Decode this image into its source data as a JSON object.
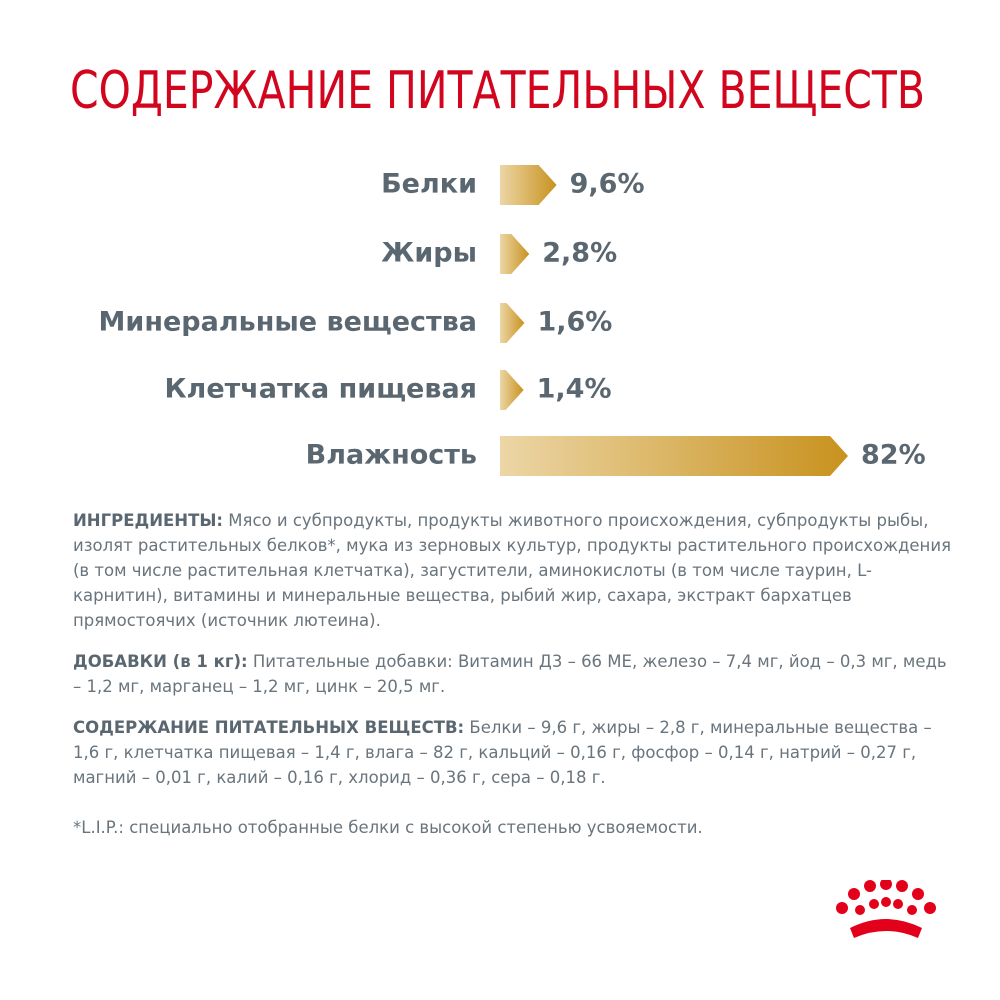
{
  "chart_data": {
    "type": "bar",
    "orientation": "horizontal",
    "title": "СОДЕРЖАНИЕ ПИТАТЕЛЬНЫХ ВЕЩЕСТВ",
    "categories": [
      "Белки",
      "Жиры",
      "Минеральные вещества",
      "Клетчатка пищевая",
      "Влажность"
    ],
    "values": [
      9.6,
      2.8,
      1.6,
      1.4,
      82
    ],
    "value_labels": [
      "9,6%",
      "2,8%",
      "1,6%",
      "1,4%",
      "82%"
    ],
    "color_start": "#ecd6a6",
    "color": "#c8921e"
  },
  "paragraphs": [
    {
      "label": "ИНГРЕДИЕНТЫ:",
      "text": "Мясо и субпродукты, продукты животного происхождения, субпродукты рыбы, изолят растительных белков*, мука из зерновых культур, продукты растительного происхождения (в том числе растительная клетчатка), загустители, аминокислоты (в том числе таурин, L-карнитин), витамины и минеральные вещества, рыбий жир, сахара, экстракт бархатцев прямостоячих (источник лютеина)."
    },
    {
      "label": "ДОБАВКИ (в 1 кг):",
      "text": "Питательные добавки: Витамин Д3 – 66 МЕ, железо – 7,4 мг, йод – 0,3 мг, медь – 1,2 мг, марганец – 1,2 мг, цинк – 20,5 мг."
    },
    {
      "label": "СОДЕРЖАНИЕ ПИТАТЕЛЬНЫХ ВЕЩЕСТВ:",
      "text": "Белки – 9,6 г, жиры – 2,8 г, минеральные вещества – 1,6 г, клетчатка пищевая – 1,4 г, влага – 82 г, кальций – 0,16 г, фосфор – 0,14 г, натрий – 0,27 г, магний – 0,01 г, калий – 0,16 г, хлорид – 0,36 г, сера – 0,18 г."
    }
  ],
  "footnote": "*L.I.P.: специально отобранные белки с высокой степенью усвояемости."
}
